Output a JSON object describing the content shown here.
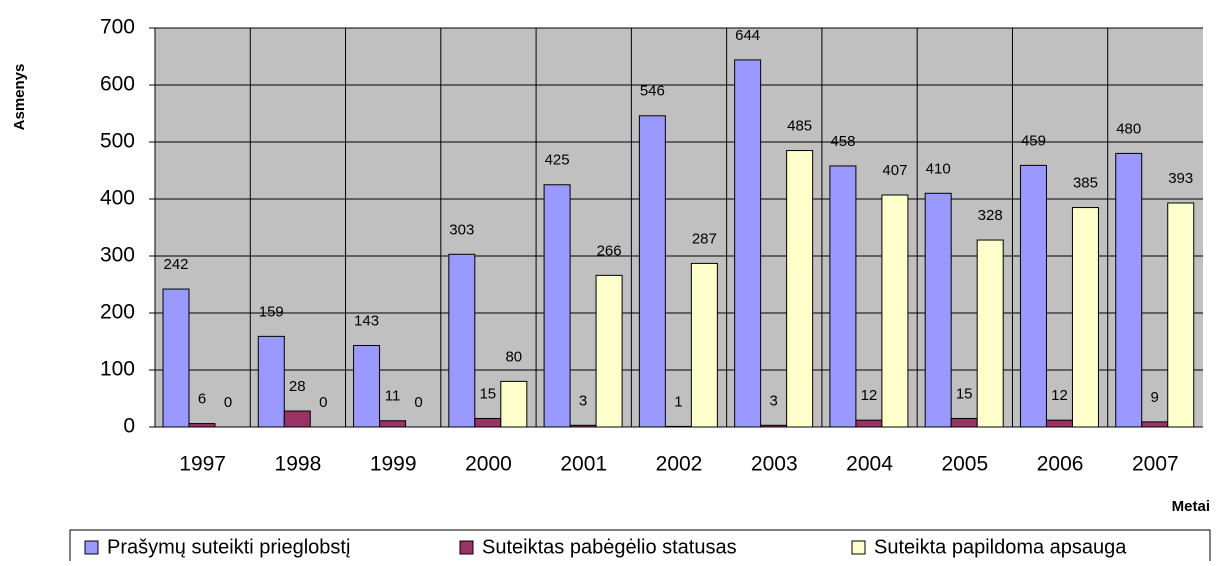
{
  "chart_data": {
    "type": "bar",
    "y_label": "Asmenys",
    "x_label": "Metai",
    "categories": [
      "1997",
      "1998",
      "1999",
      "2000",
      "2001",
      "2002",
      "2003",
      "2004",
      "2005",
      "2006",
      "2007"
    ],
    "series": [
      {
        "name": "Prašymų suteikti prieglobstį",
        "color": "#9999ff",
        "values": [
          242,
          159,
          143,
          303,
          425,
          546,
          644,
          458,
          410,
          459,
          480
        ]
      },
      {
        "name": "Suteiktas pabėgėlio statusas",
        "color": "#993366",
        "values": [
          6,
          28,
          11,
          15,
          3,
          1,
          3,
          12,
          15,
          12,
          9
        ]
      },
      {
        "name": "Suteikta papildoma apsauga",
        "color": "#ffffcc",
        "values": [
          0,
          0,
          0,
          80,
          266,
          287,
          485,
          407,
          328,
          385,
          393
        ]
      }
    ],
    "ylim": [
      0,
      700
    ],
    "yticks": [
      0,
      100,
      200,
      300,
      400,
      500,
      600,
      700
    ],
    "grid": true,
    "legend": "bottom"
  }
}
